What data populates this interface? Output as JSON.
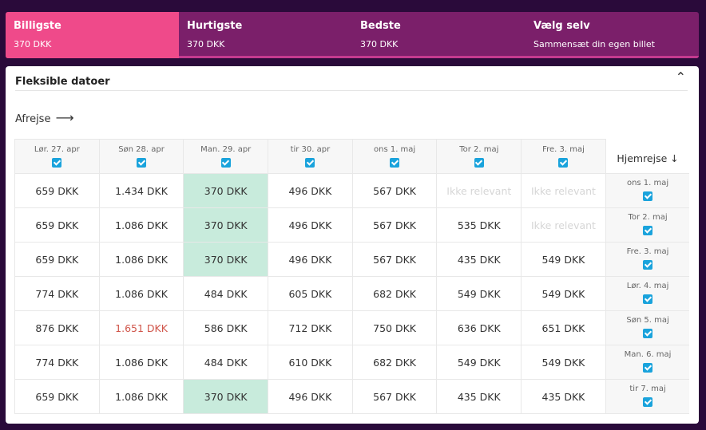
{
  "tabs": [
    {
      "title": "Billigste",
      "price": "370 DKK"
    },
    {
      "title": "Hurtigste",
      "price": "370 DKK"
    },
    {
      "title": "Bedste",
      "price": "370 DKK"
    },
    {
      "title": "Vælg selv",
      "price": "Sammensæt din egen billet"
    }
  ],
  "panel": {
    "title": "Fleksible datoer",
    "depart_label": "Afrejse",
    "return_label": "Hjemrejse",
    "colors": {
      "accent": "#ef4a8a",
      "cheapest": "#c8ebdc",
      "checkbox": "#1aa3dc",
      "expensive": "#d0554a"
    }
  },
  "depart_dates": [
    "Lør. 27. apr",
    "Søn 28. apr",
    "Man. 29. apr",
    "tir 30. apr",
    "ons 1. maj",
    "Tor 2. maj",
    "Fre. 3. maj"
  ],
  "rows": [
    {
      "ret": "ons 1. maj",
      "cells": [
        "659 DKK",
        "1.434 DKK",
        "370 DKK",
        "496 DKK",
        "567 DKK",
        "Ikke relevant",
        "Ikke relevant"
      ]
    },
    {
      "ret": "Tor 2. maj",
      "cells": [
        "659 DKK",
        "1.086 DKK",
        "370 DKK",
        "496 DKK",
        "567 DKK",
        "535 DKK",
        "Ikke relevant"
      ]
    },
    {
      "ret": "Fre. 3. maj",
      "cells": [
        "659 DKK",
        "1.086 DKK",
        "370 DKK",
        "496 DKK",
        "567 DKK",
        "435 DKK",
        "549 DKK"
      ]
    },
    {
      "ret": "Lør. 4. maj",
      "cells": [
        "774 DKK",
        "1.086 DKK",
        "484 DKK",
        "605 DKK",
        "682 DKK",
        "549 DKK",
        "549 DKK"
      ]
    },
    {
      "ret": "Søn 5. maj",
      "cells": [
        "876 DKK",
        "1.651 DKK",
        "586 DKK",
        "712 DKK",
        "750 DKK",
        "636 DKK",
        "651 DKK"
      ]
    },
    {
      "ret": "Man. 6. maj",
      "cells": [
        "774 DKK",
        "1.086 DKK",
        "484 DKK",
        "610 DKK",
        "682 DKK",
        "549 DKK",
        "549 DKK"
      ]
    },
    {
      "ret": "tir 7. maj",
      "cells": [
        "659 DKK",
        "1.086 DKK",
        "370 DKK",
        "496 DKK",
        "567 DKK",
        "435 DKK",
        "435 DKK"
      ]
    }
  ]
}
